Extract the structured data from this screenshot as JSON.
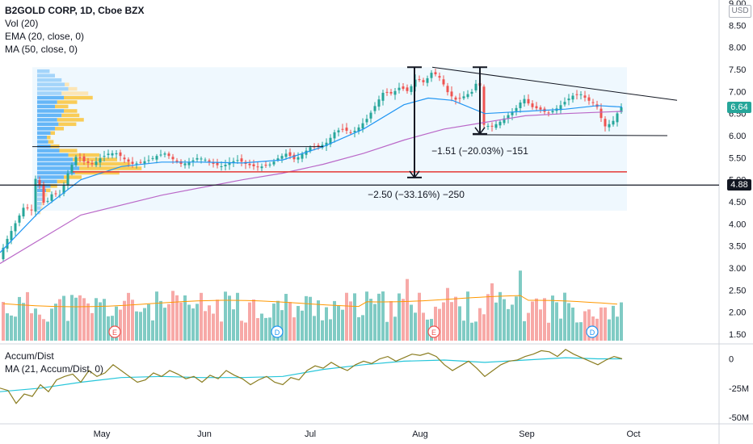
{
  "header": {
    "symbol_line": "B2GOLD CORP, 1D, Cboe BZX",
    "vol_label": "Vol (20)",
    "ema_label": "EMA (20, close, 0)",
    "ma_label": "MA (50, close, 0)"
  },
  "price_axis": {
    "currency": "USD",
    "ticks": [
      "9.00",
      "8.50",
      "8.00",
      "7.50",
      "7.00",
      "6.50",
      "6.00",
      "5.50",
      "5.00",
      "4.50",
      "4.00",
      "3.50",
      "3.00",
      "2.50",
      "2.00",
      "1.50"
    ],
    "last_price": "6.64",
    "level_tag": "4.88"
  },
  "time_axis": {
    "labels": [
      "May",
      "Jun",
      "Jul",
      "Aug",
      "Sep",
      "Oct"
    ]
  },
  "indicator": {
    "title": "Accum/Dist",
    "ma_label": "MA (21, Accum/Dist, 0)",
    "ticks": [
      "0",
      "-25M",
      "-50M"
    ]
  },
  "annotations": {
    "measure_big": "−2.50 (−33.16%) −250",
    "measure_small": "−1.51 (−20.03%) −151",
    "event_markers": [
      "E",
      "D",
      "E",
      "D"
    ]
  },
  "colors": {
    "up": "#26a69a",
    "down": "#ef5350",
    "ema": "#2196f3",
    "ma": "#ba68c8",
    "support": "#e53935",
    "ad_line": "#8a7d20",
    "ad_ma": "#26c6da",
    "last_price_bg": "#26a69a",
    "vol_ma": "#ff9800"
  },
  "chart_data": {
    "type": "candlestick",
    "title": "B2GOLD CORP, 1D, Cboe BZX",
    "yrange": [
      1.2,
      9.0
    ],
    "series": [
      {
        "name": "EMA (20, close, 0)"
      },
      {
        "name": "MA (50, close, 0)"
      },
      {
        "name": "Vol (20)"
      }
    ],
    "price_path": [
      [
        0,
        3.3
      ],
      [
        10,
        3.7
      ],
      [
        20,
        4.05
      ],
      [
        30,
        4.4
      ],
      [
        40,
        4.3
      ],
      [
        45,
        5.2
      ],
      [
        55,
        4.4
      ],
      [
        65,
        4.7
      ],
      [
        75,
        4.65
      ],
      [
        85,
        5.2
      ],
      [
        95,
        5.55
      ],
      [
        105,
        5.4
      ],
      [
        115,
        5.35
      ],
      [
        125,
        5.5
      ],
      [
        135,
        5.6
      ],
      [
        145,
        5.6
      ],
      [
        155,
        5.45
      ],
      [
        165,
        5.35
      ],
      [
        175,
        5.4
      ],
      [
        185,
        5.45
      ],
      [
        195,
        5.55
      ],
      [
        205,
        5.6
      ],
      [
        215,
        5.45
      ],
      [
        225,
        5.35
      ],
      [
        235,
        5.4
      ],
      [
        245,
        5.5
      ],
      [
        255,
        5.45
      ],
      [
        265,
        5.35
      ],
      [
        275,
        5.3
      ],
      [
        285,
        5.4
      ],
      [
        295,
        5.45
      ],
      [
        305,
        5.35
      ],
      [
        315,
        5.3
      ],
      [
        325,
        5.3
      ],
      [
        335,
        5.35
      ],
      [
        345,
        5.5
      ],
      [
        355,
        5.6
      ],
      [
        365,
        5.45
      ],
      [
        375,
        5.6
      ],
      [
        385,
        5.75
      ],
      [
        395,
        5.75
      ],
      [
        405,
        5.85
      ],
      [
        415,
        6.1
      ],
      [
        425,
        6.15
      ],
      [
        435,
        6.05
      ],
      [
        445,
        6.2
      ],
      [
        455,
        6.4
      ],
      [
        465,
        6.7
      ],
      [
        475,
        7.0
      ],
      [
        485,
        6.95
      ],
      [
        495,
        7.1
      ],
      [
        505,
        7.0
      ],
      [
        515,
        7.3
      ],
      [
        525,
        7.2
      ],
      [
        535,
        7.45
      ],
      [
        545,
        7.3
      ],
      [
        555,
        6.95
      ],
      [
        565,
        6.8
      ],
      [
        575,
        6.9
      ],
      [
        585,
        7.0
      ],
      [
        593,
        7.35
      ],
      [
        598,
        6.25
      ],
      [
        608,
        6.2
      ],
      [
        618,
        6.3
      ],
      [
        628,
        6.45
      ],
      [
        638,
        6.6
      ],
      [
        648,
        6.85
      ],
      [
        658,
        6.65
      ],
      [
        668,
        6.6
      ],
      [
        678,
        6.5
      ],
      [
        688,
        6.6
      ],
      [
        698,
        6.75
      ],
      [
        708,
        6.9
      ],
      [
        718,
        6.95
      ],
      [
        728,
        6.8
      ],
      [
        738,
        6.7
      ],
      [
        748,
        6.2
      ],
      [
        758,
        6.3
      ],
      [
        768,
        6.64
      ]
    ],
    "ema20_path": [
      [
        0,
        3.35
      ],
      [
        50,
        4.3
      ],
      [
        100,
        5.0
      ],
      [
        150,
        5.3
      ],
      [
        200,
        5.4
      ],
      [
        250,
        5.4
      ],
      [
        300,
        5.38
      ],
      [
        350,
        5.45
      ],
      [
        400,
        5.75
      ],
      [
        450,
        6.15
      ],
      [
        500,
        6.7
      ],
      [
        530,
        6.85
      ],
      [
        560,
        6.8
      ],
      [
        600,
        6.5
      ],
      [
        650,
        6.55
      ],
      [
        700,
        6.6
      ],
      [
        740,
        6.68
      ],
      [
        770,
        6.65
      ]
    ],
    "ma50_path": [
      [
        0,
        3.1
      ],
      [
        100,
        4.2
      ],
      [
        200,
        4.65
      ],
      [
        300,
        5.0
      ],
      [
        350,
        5.15
      ],
      [
        400,
        5.35
      ],
      [
        450,
        5.6
      ],
      [
        500,
        5.9
      ],
      [
        550,
        6.15
      ],
      [
        600,
        6.3
      ],
      [
        650,
        6.45
      ],
      [
        700,
        6.5
      ],
      [
        770,
        6.55
      ]
    ],
    "support_level": 5.18,
    "level_line": 4.88,
    "ad_path": [
      [
        0,
        -25
      ],
      [
        10,
        -27
      ],
      [
        20,
        -38
      ],
      [
        30,
        -30
      ],
      [
        40,
        -32
      ],
      [
        50,
        -22
      ],
      [
        60,
        -28
      ],
      [
        70,
        -18
      ],
      [
        80,
        -15
      ],
      [
        90,
        -13
      ],
      [
        100,
        -20
      ],
      [
        110,
        -10
      ],
      [
        120,
        -15
      ],
      [
        130,
        -12
      ],
      [
        140,
        -5
      ],
      [
        150,
        -10
      ],
      [
        160,
        -15
      ],
      [
        170,
        -20
      ],
      [
        180,
        -18
      ],
      [
        190,
        -12
      ],
      [
        200,
        -15
      ],
      [
        210,
        -10
      ],
      [
        220,
        -13
      ],
      [
        230,
        -17
      ],
      [
        240,
        -15
      ],
      [
        250,
        -20
      ],
      [
        260,
        -14
      ],
      [
        270,
        -17
      ],
      [
        280,
        -10
      ],
      [
        290,
        -14
      ],
      [
        300,
        -17
      ],
      [
        310,
        -22
      ],
      [
        320,
        -18
      ],
      [
        330,
        -15
      ],
      [
        340,
        -20
      ],
      [
        350,
        -22
      ],
      [
        360,
        -16
      ],
      [
        370,
        -18
      ],
      [
        380,
        -10
      ],
      [
        390,
        -6
      ],
      [
        400,
        -8
      ],
      [
        410,
        -3
      ],
      [
        420,
        -7
      ],
      [
        430,
        -10
      ],
      [
        440,
        -5
      ],
      [
        450,
        -2
      ],
      [
        460,
        -4
      ],
      [
        470,
        0
      ],
      [
        480,
        2
      ],
      [
        490,
        -2
      ],
      [
        500,
        1
      ],
      [
        510,
        4
      ],
      [
        520,
        3
      ],
      [
        530,
        5
      ],
      [
        540,
        2
      ],
      [
        550,
        -5
      ],
      [
        560,
        -10
      ],
      [
        570,
        -6
      ],
      [
        580,
        -2
      ],
      [
        590,
        -8
      ],
      [
        600,
        -15
      ],
      [
        610,
        -10
      ],
      [
        620,
        -5
      ],
      [
        630,
        -2
      ],
      [
        640,
        -1
      ],
      [
        650,
        2
      ],
      [
        660,
        4
      ],
      [
        670,
        7
      ],
      [
        680,
        6
      ],
      [
        690,
        2
      ],
      [
        700,
        8
      ],
      [
        710,
        4
      ],
      [
        720,
        1
      ],
      [
        730,
        -2
      ],
      [
        740,
        -5
      ],
      [
        750,
        -1
      ],
      [
        760,
        2
      ],
      [
        770,
        0
      ]
    ],
    "ad_ma_path": [
      [
        0,
        -28
      ],
      [
        50,
        -25
      ],
      [
        100,
        -20
      ],
      [
        150,
        -16
      ],
      [
        200,
        -15
      ],
      [
        250,
        -16
      ],
      [
        300,
        -16
      ],
      [
        350,
        -15
      ],
      [
        400,
        -9
      ],
      [
        450,
        -5
      ],
      [
        500,
        -2
      ],
      [
        550,
        -1
      ],
      [
        600,
        -3
      ],
      [
        650,
        -1
      ],
      [
        700,
        1
      ],
      [
        740,
        0
      ],
      [
        770,
        0
      ]
    ]
  }
}
